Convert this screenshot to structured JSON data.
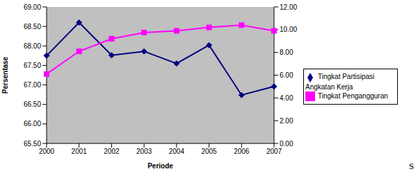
{
  "chart_data": {
    "type": "line",
    "x_label": "Periode",
    "y_label": "Persentase",
    "annotation": "S",
    "categories": [
      "2000",
      "2001",
      "2002",
      "2003",
      "2004",
      "2005",
      "2006",
      "2007"
    ],
    "series": [
      {
        "name": "Tingkat Partisipasi Angkatan Kerja",
        "color": "#000080",
        "marker": "diamond",
        "line_style": "solid",
        "axis": "y",
        "values": [
          67.75,
          68.6,
          67.76,
          67.86,
          67.55,
          68.02,
          66.74,
          66.96
        ]
      },
      {
        "name": "Tingkat Pengangguran",
        "color": "#ff00ff",
        "marker": "square",
        "line_style": "solid",
        "axis": "y2",
        "values": [
          6.1,
          8.1,
          9.2,
          9.75,
          9.9,
          10.2,
          10.4,
          9.9
        ]
      }
    ],
    "ylim": [
      65.5,
      69
    ],
    "yticks": [
      {
        "value": 65.5,
        "label": "65.50"
      },
      {
        "value": 66,
        "label": "66.00"
      },
      {
        "value": 66.5,
        "label": "66.50"
      },
      {
        "value": 67,
        "label": "67.00"
      },
      {
        "value": 67.5,
        "label": "67.50"
      },
      {
        "value": 68,
        "label": "68.00"
      },
      {
        "value": 68.5,
        "label": "68.50"
      },
      {
        "value": 69,
        "label": "69.00"
      }
    ],
    "y2lim": [
      0,
      12
    ],
    "y2ticks": [
      {
        "value": 0,
        "label": "0.00"
      },
      {
        "value": 2,
        "label": "2.00"
      },
      {
        "value": 4,
        "label": "4.00"
      },
      {
        "value": 6,
        "label": "6.00"
      },
      {
        "value": 8,
        "label": "8.00"
      },
      {
        "value": 10,
        "label": "10.00"
      },
      {
        "value": 12,
        "label": "12.00"
      }
    ],
    "grid": false,
    "legend": "right"
  }
}
